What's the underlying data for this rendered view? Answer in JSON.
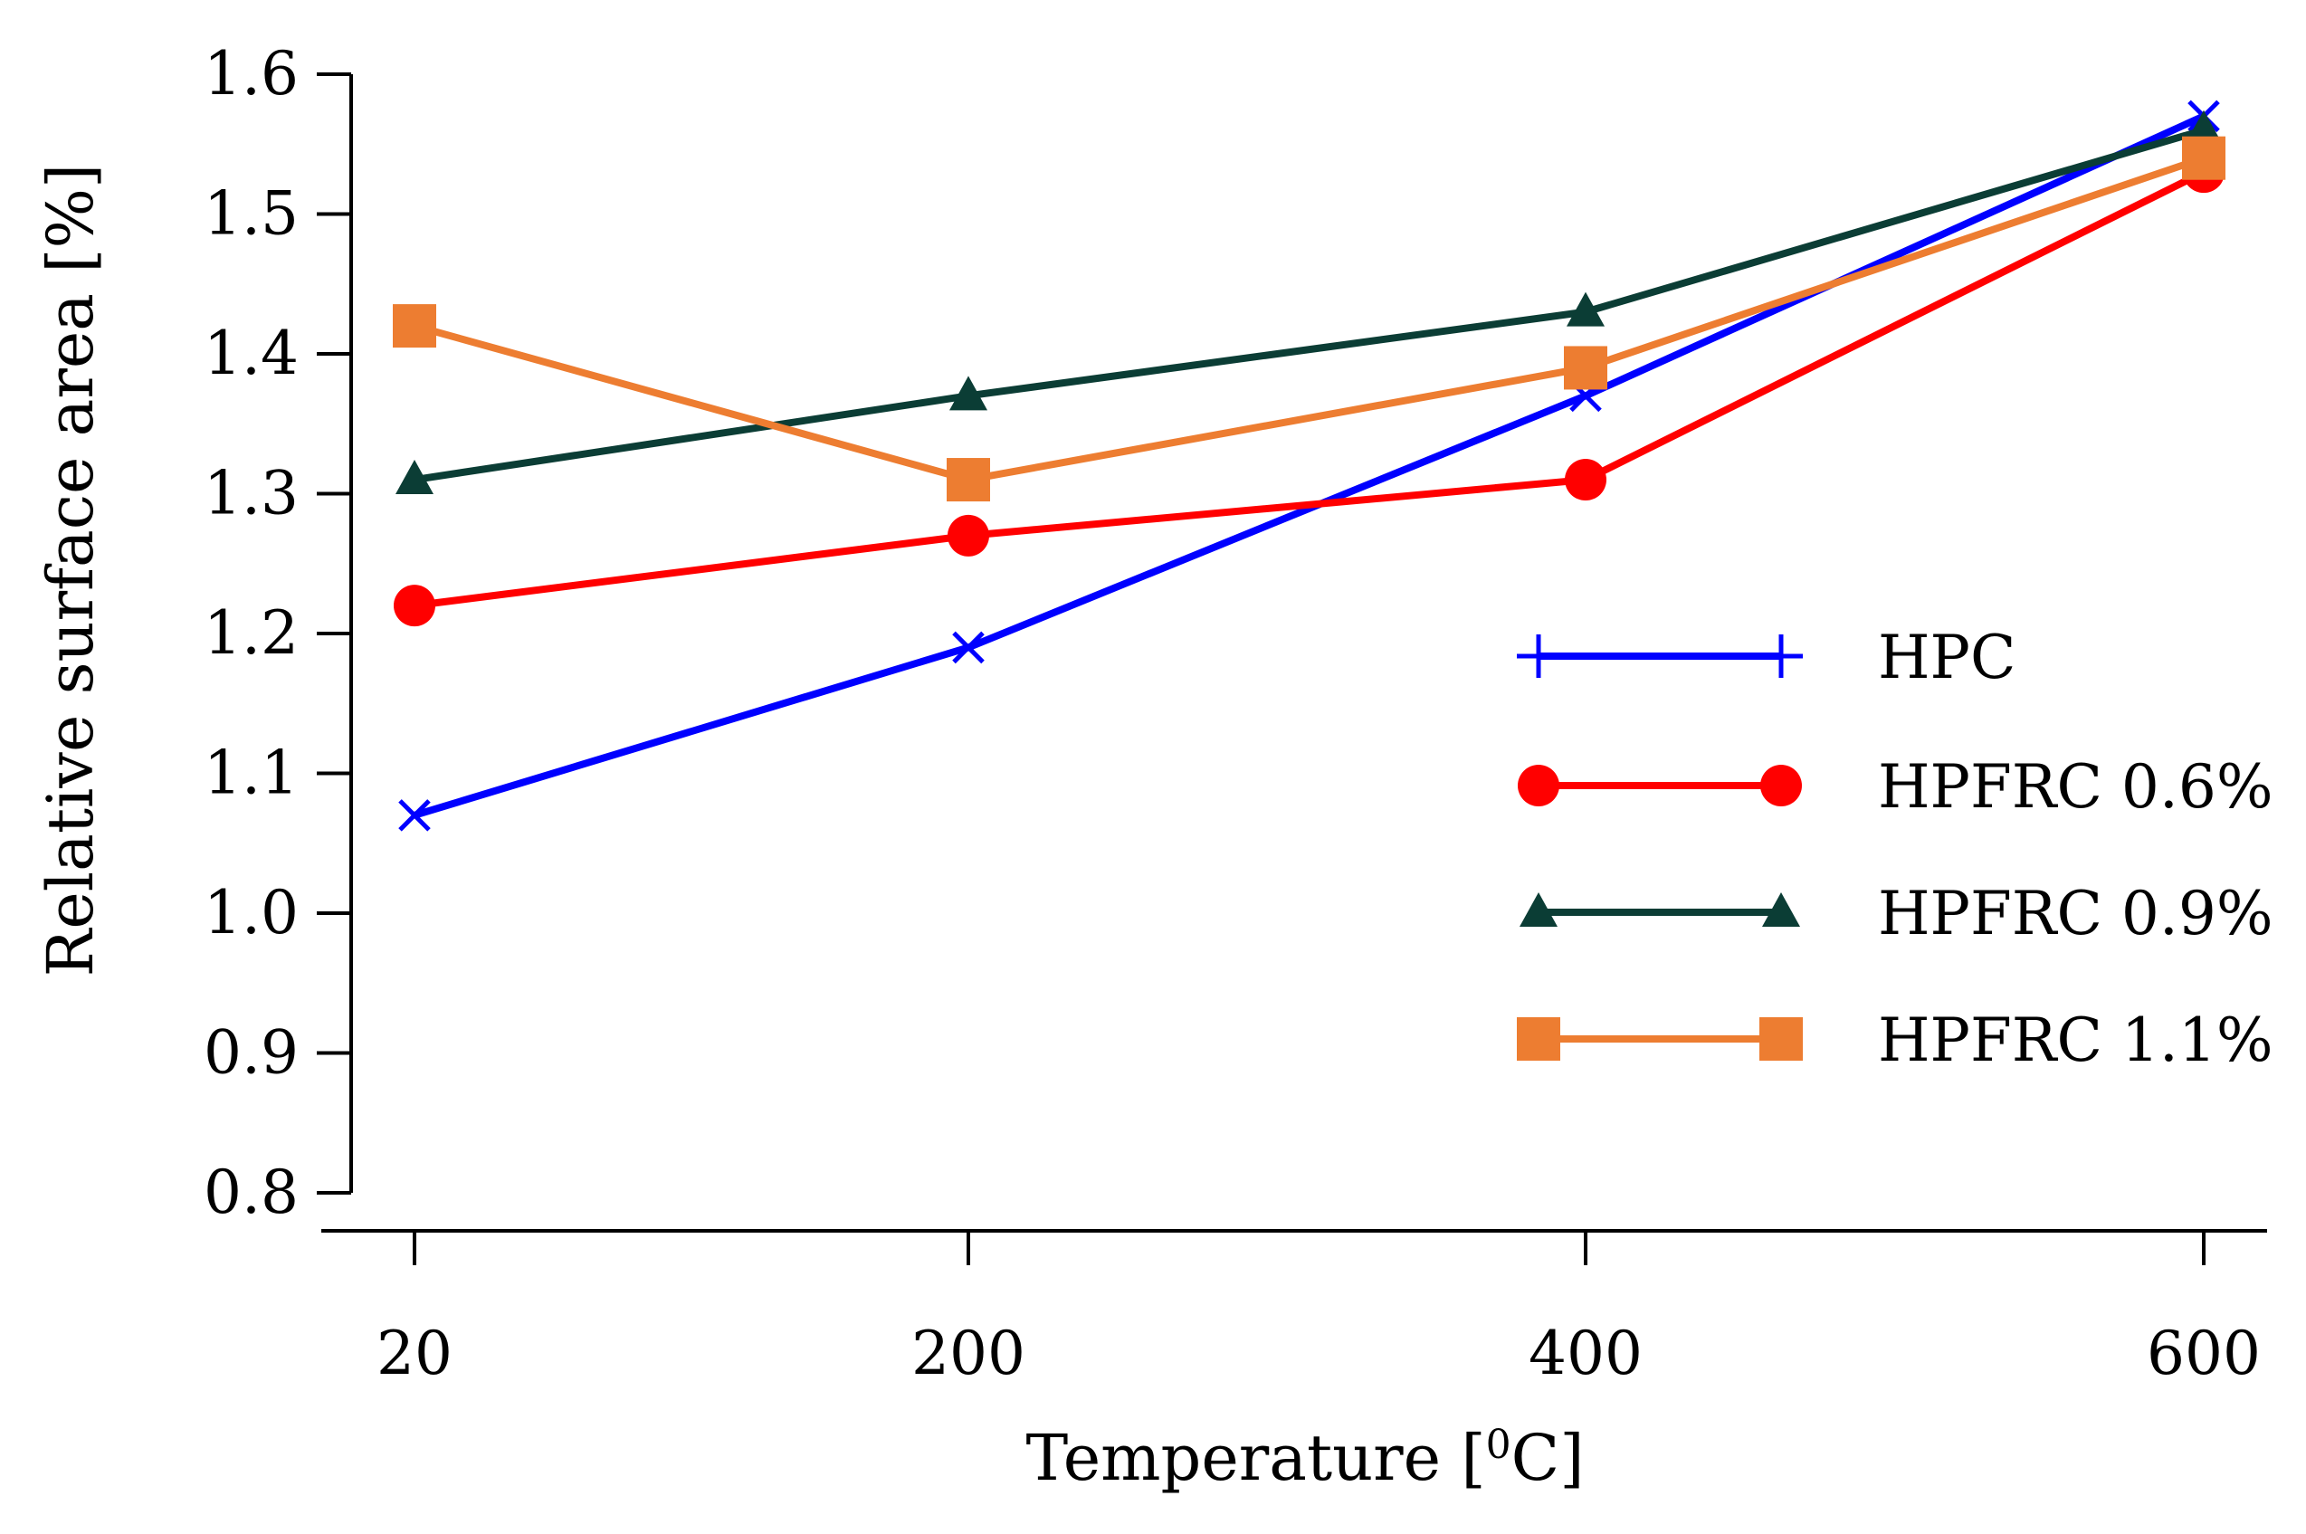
{
  "chart_data": {
    "type": "line",
    "title": "",
    "xlabel": "Temperature [",
    "xlabel_sup": "0",
    "xlabel_tail": "C]",
    "ylabel": "Relative surface area [%]",
    "x_categories": [
      "20",
      "200",
      "400",
      "600"
    ],
    "x_values": [
      20,
      200,
      400,
      600
    ],
    "ylim": [
      0.8,
      1.6
    ],
    "y_ticks": [
      "0.8",
      "0.9",
      "1.0",
      "1.1",
      "1.2",
      "1.3",
      "1.4",
      "1.5",
      "1.6"
    ],
    "grid": false,
    "legend_position": "right",
    "series": [
      {
        "name": "HPC",
        "values": [
          1.07,
          1.19,
          1.37,
          1.57
        ],
        "color": "#0000ff",
        "marker": "cross",
        "legend_marker": "plus"
      },
      {
        "name": "HPFRC 0.6%",
        "values": [
          1.22,
          1.27,
          1.31,
          1.53
        ],
        "color": "#ff0000",
        "marker": "circle",
        "legend_marker": "circle"
      },
      {
        "name": "HPFRC 0.9%",
        "values": [
          1.31,
          1.37,
          1.43,
          1.56
        ],
        "color": "#0b3d35",
        "marker": "triangle",
        "legend_marker": "triangle"
      },
      {
        "name": "HPFRC 1.1%",
        "values": [
          1.42,
          1.31,
          1.39,
          1.54
        ],
        "color": "#ed7d31",
        "marker": "square",
        "legend_marker": "square"
      }
    ]
  }
}
